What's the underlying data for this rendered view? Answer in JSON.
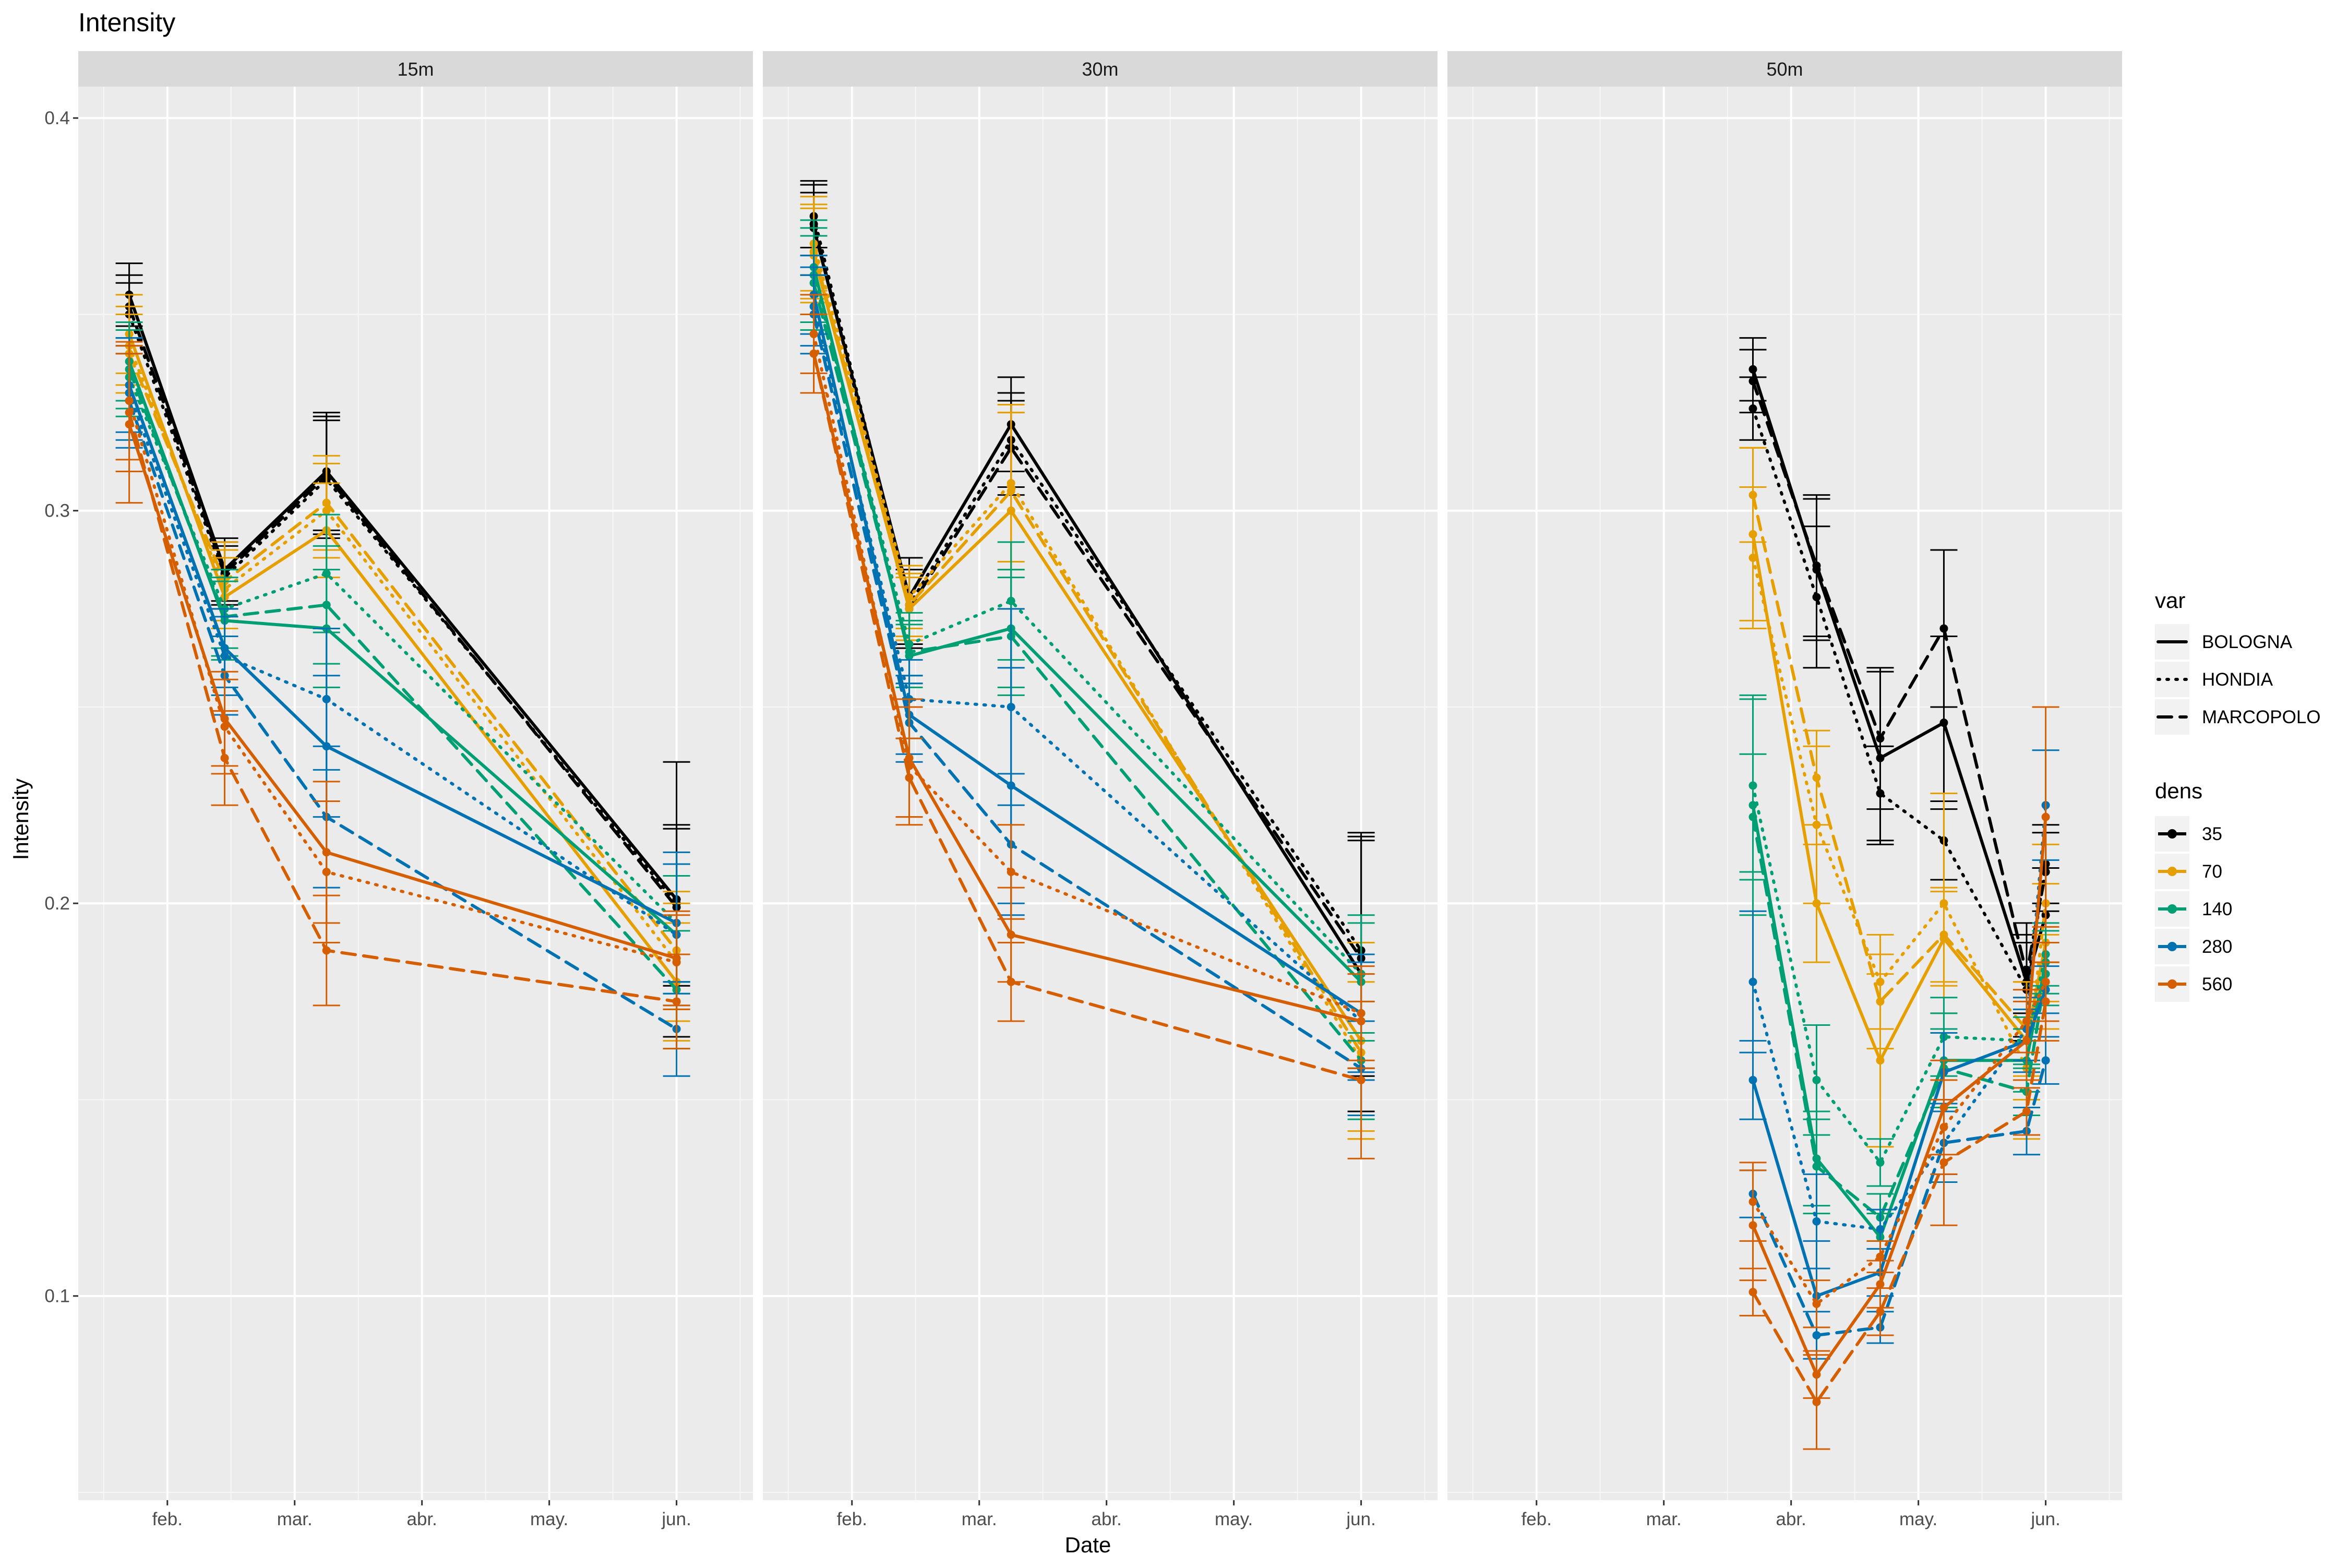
{
  "title": "Intensity",
  "chart_data": {
    "type": "line",
    "title": "Intensity",
    "xlabel": "Date",
    "ylabel": "Intensity",
    "ylim": [
      0.048,
      0.408
    ],
    "xlim": [
      0.3,
      5.6
    ],
    "yticks": [
      0.1,
      0.2,
      0.3,
      0.4
    ],
    "ytick_labels": [
      "0.1",
      "0.2",
      "0.3",
      "0.4"
    ],
    "xticks": [
      1,
      2,
      3,
      4,
      5
    ],
    "xtick_labels": [
      "feb.",
      "mar.",
      "abr.",
      "may.",
      "jun."
    ],
    "grid": true,
    "panels": [
      {
        "label": "15m",
        "dates": [
          0.7,
          1.45,
          2.25,
          5.0
        ]
      },
      {
        "label": "30m",
        "dates": [
          0.7,
          1.45,
          2.25,
          5.0
        ]
      },
      {
        "label": "50m",
        "dates": [
          2.7,
          3.2,
          3.7,
          4.2,
          4.85,
          5.0
        ]
      }
    ],
    "legend": {
      "position": "right",
      "var_title": "var",
      "var": [
        {
          "name": "BOLOGNA",
          "dash": "solid"
        },
        {
          "name": "HONDIA",
          "dash": "dotted"
        },
        {
          "name": "MARCOPOLO",
          "dash": "dashed"
        }
      ],
      "dens_title": "dens",
      "dens": [
        {
          "name": "35",
          "color": "#000000"
        },
        {
          "name": "70",
          "color": "#E69F00"
        },
        {
          "name": "140",
          "color": "#009E73"
        },
        {
          "name": "280",
          "color": "#0072B2"
        },
        {
          "name": "560",
          "color": "#D55E00"
        }
      ]
    },
    "series": [
      {
        "panel": 0,
        "var": "BOLOGNA",
        "dens": "35",
        "values": [
          0.355,
          0.285,
          0.31,
          0.201
        ],
        "err": [
          0.008,
          0.008,
          0.015,
          0.035
        ]
      },
      {
        "panel": 0,
        "var": "HONDIA",
        "dens": "35",
        "values": [
          0.35,
          0.283,
          0.308,
          0.2
        ],
        "err": [
          0.008,
          0.008,
          0.015,
          0.02
        ]
      },
      {
        "panel": 0,
        "var": "MARCOPOLO",
        "dens": "35",
        "values": [
          0.352,
          0.284,
          0.309,
          0.199
        ],
        "err": [
          0.008,
          0.008,
          0.015,
          0.02
        ]
      },
      {
        "panel": 0,
        "var": "BOLOGNA",
        "dens": "70",
        "values": [
          0.345,
          0.278,
          0.295,
          0.18
        ],
        "err": [
          0.01,
          0.01,
          0.012,
          0.015
        ]
      },
      {
        "panel": 0,
        "var": "HONDIA",
        "dens": "70",
        "values": [
          0.342,
          0.28,
          0.3,
          0.185
        ],
        "err": [
          0.01,
          0.01,
          0.012,
          0.015
        ]
      },
      {
        "panel": 0,
        "var": "MARCOPOLO",
        "dens": "70",
        "values": [
          0.34,
          0.282,
          0.302,
          0.188
        ],
        "err": [
          0.01,
          0.01,
          0.012,
          0.015
        ]
      },
      {
        "panel": 0,
        "var": "BOLOGNA",
        "dens": "140",
        "values": [
          0.338,
          0.272,
          0.27,
          0.192
        ],
        "err": [
          0.01,
          0.01,
          0.015,
          0.015
        ]
      },
      {
        "panel": 0,
        "var": "HONDIA",
        "dens": "140",
        "values": [
          0.334,
          0.275,
          0.284,
          0.195
        ],
        "err": [
          0.01,
          0.01,
          0.015,
          0.015
        ]
      },
      {
        "panel": 0,
        "var": "MARCOPOLO",
        "dens": "140",
        "values": [
          0.336,
          0.273,
          0.276,
          0.178
        ],
        "err": [
          0.01,
          0.01,
          0.015,
          0.015
        ]
      },
      {
        "panel": 0,
        "var": "BOLOGNA",
        "dens": "280",
        "values": [
          0.332,
          0.265,
          0.24,
          0.195
        ],
        "err": [
          0.012,
          0.01,
          0.018,
          0.018
        ]
      },
      {
        "panel": 0,
        "var": "HONDIA",
        "dens": "280",
        "values": [
          0.33,
          0.263,
          0.252,
          0.192
        ],
        "err": [
          0.012,
          0.01,
          0.018,
          0.018
        ]
      },
      {
        "panel": 0,
        "var": "MARCOPOLO",
        "dens": "280",
        "values": [
          0.328,
          0.258,
          0.222,
          0.168
        ],
        "err": [
          0.012,
          0.01,
          0.018,
          0.012
        ]
      },
      {
        "panel": 0,
        "var": "BOLOGNA",
        "dens": "560",
        "values": [
          0.322,
          0.247,
          0.213,
          0.186
        ],
        "err": [
          0.02,
          0.012,
          0.018,
          0.012
        ]
      },
      {
        "panel": 0,
        "var": "HONDIA",
        "dens": "560",
        "values": [
          0.328,
          0.245,
          0.208,
          0.185
        ],
        "err": [
          0.015,
          0.012,
          0.018,
          0.012
        ]
      },
      {
        "panel": 0,
        "var": "MARCOPOLO",
        "dens": "560",
        "values": [
          0.325,
          0.237,
          0.188,
          0.175
        ],
        "err": [
          0.015,
          0.012,
          0.014,
          0.012
        ]
      },
      {
        "panel": 1,
        "var": "BOLOGNA",
        "dens": "35",
        "values": [
          0.372,
          0.278,
          0.322,
          0.182
        ],
        "err": [
          0.012,
          0.01,
          0.012,
          0.035
        ]
      },
      {
        "panel": 1,
        "var": "HONDIA",
        "dens": "35",
        "values": [
          0.375,
          0.276,
          0.318,
          0.188
        ],
        "err": [
          0.008,
          0.01,
          0.012,
          0.03
        ]
      },
      {
        "panel": 1,
        "var": "MARCOPOLO",
        "dens": "35",
        "values": [
          0.373,
          0.275,
          0.316,
          0.186
        ],
        "err": [
          0.008,
          0.01,
          0.012,
          0.03
        ]
      },
      {
        "panel": 1,
        "var": "BOLOGNA",
        "dens": "70",
        "values": [
          0.365,
          0.275,
          0.3,
          0.165
        ],
        "err": [
          0.012,
          0.008,
          0.025,
          0.025
        ]
      },
      {
        "panel": 1,
        "var": "HONDIA",
        "dens": "70",
        "values": [
          0.368,
          0.278,
          0.307,
          0.16
        ],
        "err": [
          0.012,
          0.008,
          0.02,
          0.02
        ]
      },
      {
        "panel": 1,
        "var": "MARCOPOLO",
        "dens": "70",
        "values": [
          0.366,
          0.276,
          0.305,
          0.162
        ],
        "err": [
          0.012,
          0.008,
          0.02,
          0.02
        ]
      },
      {
        "panel": 1,
        "var": "BOLOGNA",
        "dens": "140",
        "values": [
          0.362,
          0.263,
          0.27,
          0.18
        ],
        "err": [
          0.012,
          0.008,
          0.015,
          0.015
        ]
      },
      {
        "panel": 1,
        "var": "HONDIA",
        "dens": "140",
        "values": [
          0.36,
          0.266,
          0.277,
          0.182
        ],
        "err": [
          0.012,
          0.008,
          0.015,
          0.015
        ]
      },
      {
        "panel": 1,
        "var": "MARCOPOLO",
        "dens": "140",
        "values": [
          0.358,
          0.264,
          0.268,
          0.16
        ],
        "err": [
          0.012,
          0.008,
          0.015,
          0.015
        ]
      },
      {
        "panel": 1,
        "var": "BOLOGNA",
        "dens": "280",
        "values": [
          0.355,
          0.248,
          0.23,
          0.172
        ],
        "err": [
          0.01,
          0.01,
          0.03,
          0.015
        ]
      },
      {
        "panel": 1,
        "var": "HONDIA",
        "dens": "280",
        "values": [
          0.352,
          0.252,
          0.25,
          0.17
        ],
        "err": [
          0.01,
          0.01,
          0.025,
          0.015
        ]
      },
      {
        "panel": 1,
        "var": "MARCOPOLO",
        "dens": "280",
        "values": [
          0.35,
          0.246,
          0.215,
          0.158
        ],
        "err": [
          0.01,
          0.01,
          0.018,
          0.012
        ]
      },
      {
        "panel": 1,
        "var": "BOLOGNA",
        "dens": "560",
        "values": [
          0.34,
          0.237,
          0.192,
          0.17
        ],
        "err": [
          0.01,
          0.015,
          0.012,
          0.012
        ]
      },
      {
        "panel": 1,
        "var": "HONDIA",
        "dens": "560",
        "values": [
          0.345,
          0.235,
          0.208,
          0.172
        ],
        "err": [
          0.01,
          0.015,
          0.012,
          0.012
        ]
      },
      {
        "panel": 1,
        "var": "MARCOPOLO",
        "dens": "560",
        "values": [
          0.34,
          0.232,
          0.18,
          0.155
        ],
        "err": [
          0.01,
          0.01,
          0.01,
          0.02
        ]
      },
      {
        "panel": 2,
        "var": "BOLOGNA",
        "dens": "35",
        "values": [
          0.336,
          0.285,
          0.237,
          0.246,
          0.18,
          0.197
        ],
        "err": [
          0.008,
          0.018,
          0.022,
          0.022,
          0.015,
          0.012
        ]
      },
      {
        "panel": 2,
        "var": "HONDIA",
        "dens": "35",
        "values": [
          0.326,
          0.278,
          0.228,
          0.216,
          0.178,
          0.21
        ],
        "err": [
          0.008,
          0.018,
          0.012,
          0.01,
          0.012,
          0.01
        ]
      },
      {
        "panel": 2,
        "var": "MARCOPOLO",
        "dens": "35",
        "values": [
          0.333,
          0.286,
          0.242,
          0.27,
          0.182,
          0.208
        ],
        "err": [
          0.008,
          0.018,
          0.018,
          0.02,
          0.01,
          0.01
        ]
      },
      {
        "panel": 2,
        "var": "BOLOGNA",
        "dens": "70",
        "values": [
          0.294,
          0.2,
          0.16,
          0.191,
          0.165,
          0.19
        ],
        "err": [
          0.022,
          0.015,
          0.022,
          0.012,
          0.015,
          0.015
        ]
      },
      {
        "panel": 2,
        "var": "HONDIA",
        "dens": "70",
        "values": [
          0.288,
          0.22,
          0.18,
          0.2,
          0.158,
          0.2
        ],
        "err": [
          0.018,
          0.02,
          0.012,
          0.028,
          0.018,
          0.015
        ]
      },
      {
        "panel": 2,
        "var": "MARCOPOLO",
        "dens": "70",
        "values": [
          0.304,
          0.232,
          0.175,
          0.192,
          0.168,
          0.18
        ],
        "err": [
          0.012,
          0.012,
          0.012,
          0.012,
          0.012,
          0.012
        ]
      },
      {
        "panel": 2,
        "var": "BOLOGNA",
        "dens": "140",
        "values": [
          0.225,
          0.135,
          0.115,
          0.16,
          0.16,
          0.185
        ],
        "err": [
          0.028,
          0.012,
          0.006,
          0.012,
          0.008,
          0.008
        ]
      },
      {
        "panel": 2,
        "var": "HONDIA",
        "dens": "140",
        "values": [
          0.23,
          0.155,
          0.134,
          0.166,
          0.165,
          0.187
        ],
        "err": [
          0.022,
          0.014,
          0.006,
          0.01,
          0.006,
          0.008
        ]
      },
      {
        "panel": 2,
        "var": "MARCOPOLO",
        "dens": "140",
        "values": [
          0.222,
          0.133,
          0.12,
          0.158,
          0.152,
          0.182
        ],
        "err": [
          0.016,
          0.012,
          0.006,
          0.01,
          0.006,
          0.008
        ]
      },
      {
        "panel": 2,
        "var": "BOLOGNA",
        "dens": "280",
        "values": [
          0.155,
          0.1,
          0.106,
          0.157,
          0.165,
          0.178
        ],
        "err": [
          0.01,
          0.014,
          0.006,
          0.01,
          0.008,
          0.006
        ]
      },
      {
        "panel": 2,
        "var": "HONDIA",
        "dens": "280",
        "values": [
          0.18,
          0.119,
          0.117,
          0.139,
          0.168,
          0.225
        ],
        "err": [
          0.018,
          0.012,
          0.005,
          0.01,
          0.008,
          0.014
        ]
      },
      {
        "panel": 2,
        "var": "MARCOPOLO",
        "dens": "280",
        "values": [
          0.126,
          0.09,
          0.092,
          0.139,
          0.142,
          0.16
        ],
        "err": [
          0.006,
          0.006,
          0.004,
          0.008,
          0.006,
          0.006
        ]
      },
      {
        "panel": 2,
        "var": "BOLOGNA",
        "dens": "560",
        "values": [
          0.118,
          0.08,
          0.103,
          0.148,
          0.165,
          0.222
        ],
        "err": [
          0.014,
          0.006,
          0.006,
          0.012,
          0.01,
          0.028
        ]
      },
      {
        "panel": 2,
        "var": "HONDIA",
        "dens": "560",
        "values": [
          0.124,
          0.098,
          0.11,
          0.143,
          0.17,
          0.18
        ],
        "err": [
          0.01,
          0.006,
          0.004,
          0.012,
          0.008,
          0.01
        ]
      },
      {
        "panel": 2,
        "var": "MARCOPOLO",
        "dens": "560",
        "values": [
          0.101,
          0.073,
          0.096,
          0.134,
          0.147,
          0.175
        ],
        "err": [
          0.006,
          0.012,
          0.006,
          0.016,
          0.006,
          0.01
        ]
      }
    ]
  }
}
